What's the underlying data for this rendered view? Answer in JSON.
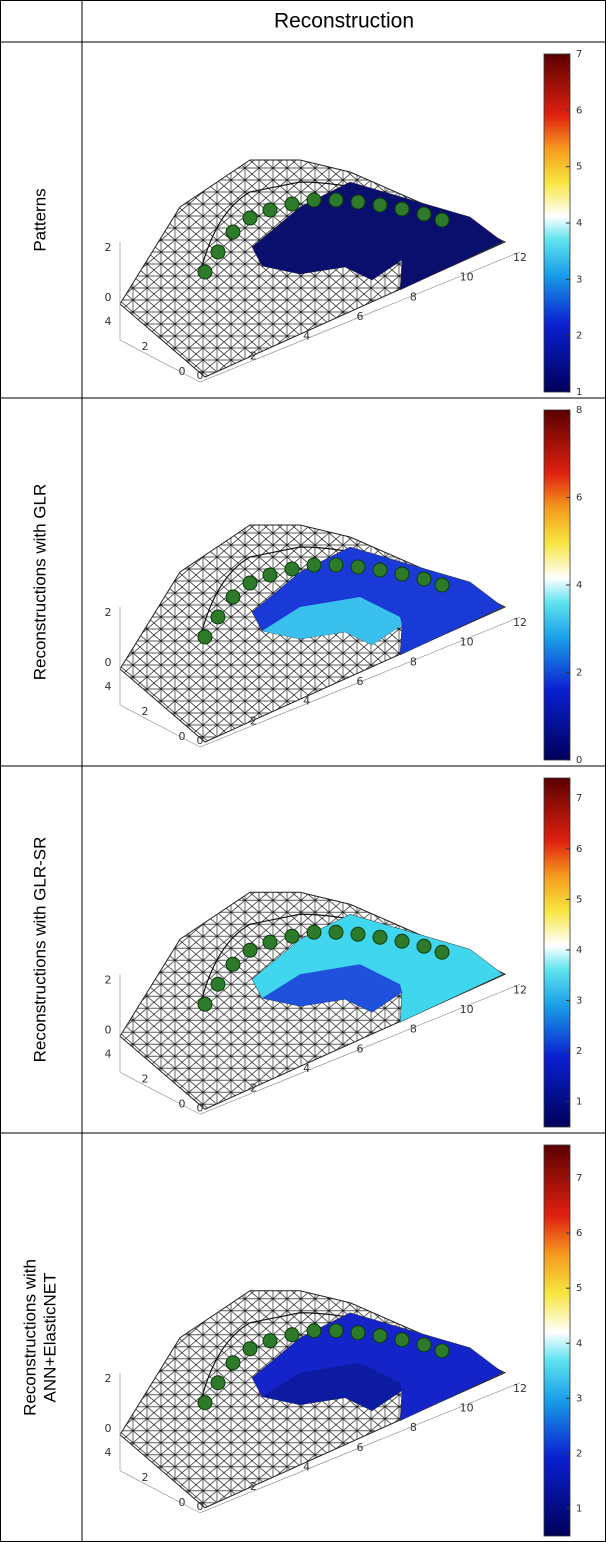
{
  "header": {
    "title": "Reconstruction"
  },
  "rows": [
    {
      "label": [
        "Patterns"
      ],
      "xlim": [
        0,
        12
      ],
      "xticks": [
        0,
        2,
        4,
        6,
        8,
        10,
        12
      ],
      "ylim": [
        0,
        4
      ],
      "yticks": [
        0,
        2,
        4
      ],
      "zlim": [
        0,
        2
      ],
      "zticks": [
        0,
        2
      ],
      "clim": [
        1,
        7
      ],
      "cticks": [
        1,
        2,
        3,
        4,
        5,
        6,
        7
      ]
    },
    {
      "label": [
        "Reconstructions with GLR"
      ],
      "xlim": [
        0,
        12
      ],
      "xticks": [
        0,
        2,
        4,
        6,
        8,
        10,
        12
      ],
      "ylim": [
        0,
        4
      ],
      "yticks": [
        0,
        2,
        4
      ],
      "zlim": [
        0,
        2
      ],
      "zticks": [
        0,
        2
      ],
      "clim": [
        0,
        8
      ],
      "cticks": [
        0,
        2,
        4,
        6,
        8
      ]
    },
    {
      "label": [
        "Reconstructions with GLR-SR"
      ],
      "xlim": [
        0,
        12
      ],
      "xticks": [
        0,
        2,
        4,
        6,
        8,
        10,
        12
      ],
      "ylim": [
        0,
        4
      ],
      "yticks": [
        0,
        2,
        4
      ],
      "zlim": [
        0,
        2
      ],
      "zticks": [
        0,
        2
      ],
      "clim": [
        0.5,
        7.4
      ],
      "cticks": [
        1,
        2,
        3,
        4,
        5,
        6,
        7
      ]
    },
    {
      "label": [
        "Reconstructions with",
        "ANN+ElasticNET"
      ],
      "xlim": [
        0,
        12
      ],
      "xticks": [
        0,
        2,
        4,
        6,
        8,
        10,
        12
      ],
      "ylim": [
        0,
        4
      ],
      "yticks": [
        0,
        2,
        4
      ],
      "zlim": [
        0,
        2
      ],
      "zticks": [
        0,
        2
      ],
      "clim": [
        0.5,
        7.6
      ],
      "cticks": [
        1,
        2,
        3,
        4,
        5,
        6,
        7
      ]
    }
  ]
}
